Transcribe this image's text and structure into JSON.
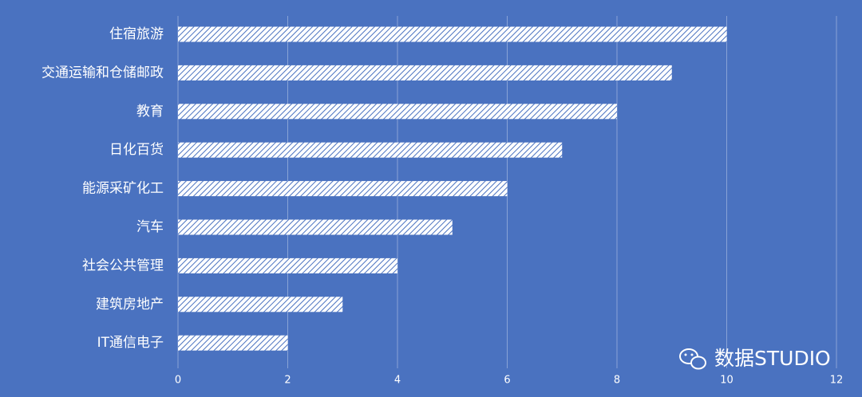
{
  "chart_data": {
    "type": "barh",
    "categories": [
      "住宿旅游",
      "交通运输和仓储邮政",
      "教育",
      "日化百货",
      "能源采矿化工",
      "汽车",
      "社会公共管理",
      "建筑房地产",
      "IT通信电子"
    ],
    "values": [
      10,
      9,
      8,
      7,
      6,
      5,
      4,
      3,
      2
    ],
    "color": "#ffffff",
    "xlim": [
      0,
      12
    ],
    "xticks": [
      0,
      2,
      4,
      6,
      8,
      10,
      12
    ],
    "grid": true,
    "watermark": "数据STUDIO"
  }
}
